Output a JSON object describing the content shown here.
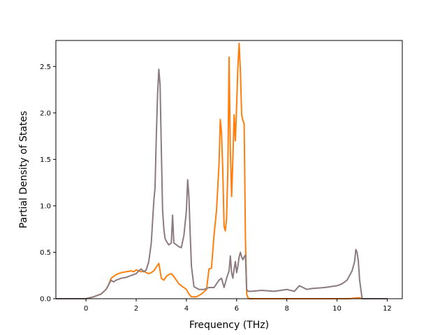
{
  "chart_data": {
    "type": "line",
    "title": "",
    "xlabel": "Frequency (THz)",
    "ylabel": "Partial Density of States",
    "xlim": [
      -1.2,
      12.6
    ],
    "ylim": [
      0,
      2.78
    ],
    "xticks": [
      0,
      2,
      4,
      6,
      8,
      10,
      12
    ],
    "xtick_labels": [
      "0",
      "2",
      "4",
      "6",
      "8",
      "10",
      "12"
    ],
    "yticks": [
      0.0,
      0.5,
      1.0,
      1.5,
      2.0,
      2.5
    ],
    "ytick_labels": [
      "0.0",
      "0.5",
      "1.0",
      "1.5",
      "2.0",
      "2.5"
    ],
    "grid": false,
    "legend": "none",
    "series": [
      {
        "color": "#ff7f0e",
        "x": [
          -1.2,
          0.0,
          0.3,
          0.6,
          0.8,
          0.9,
          1.0,
          1.1,
          1.2,
          1.4,
          1.6,
          1.8,
          1.9,
          2.0,
          2.1,
          2.2,
          2.3,
          2.4,
          2.5,
          2.6,
          2.7,
          2.8,
          2.9,
          2.95,
          3.0,
          3.1,
          3.2,
          3.3,
          3.4,
          3.5,
          3.6,
          3.7,
          3.8,
          3.9,
          4.0,
          4.1,
          4.2,
          4.4,
          4.6,
          4.8,
          4.9,
          5.0,
          5.1,
          5.2,
          5.3,
          5.35,
          5.4,
          5.45,
          5.5,
          5.55,
          5.6,
          5.65,
          5.7,
          5.75,
          5.8,
          5.85,
          5.9,
          5.95,
          6.0,
          6.05,
          6.1,
          6.15,
          6.2,
          6.25,
          6.3,
          6.35,
          6.4,
          6.45,
          6.5,
          6.6,
          7.0,
          8.0,
          9.0,
          10.0,
          10.5,
          10.8,
          10.9,
          11.0,
          12.0
        ],
        "y": [
          0.0,
          0.0,
          0.02,
          0.05,
          0.1,
          0.15,
          0.22,
          0.24,
          0.26,
          0.28,
          0.29,
          0.3,
          0.29,
          0.31,
          0.3,
          0.29,
          0.3,
          0.28,
          0.27,
          0.28,
          0.3,
          0.34,
          0.38,
          0.3,
          0.22,
          0.2,
          0.24,
          0.26,
          0.27,
          0.24,
          0.2,
          0.16,
          0.14,
          0.12,
          0.1,
          0.05,
          0.02,
          0.02,
          0.05,
          0.1,
          0.32,
          0.33,
          0.68,
          0.95,
          1.45,
          1.93,
          1.78,
          1.38,
          0.78,
          0.73,
          0.86,
          1.38,
          2.6,
          1.6,
          1.1,
          1.5,
          1.98,
          1.7,
          2.08,
          2.5,
          2.75,
          2.45,
          1.98,
          1.92,
          1.88,
          0.65,
          0.05,
          0.01,
          0.0,
          0.0,
          0.0,
          0.0,
          0.0,
          0.0,
          0.0,
          0.01,
          0.01,
          0.0,
          0.0
        ]
      },
      {
        "color": "#8c7b7e",
        "x": [
          -1.2,
          0.0,
          0.3,
          0.6,
          0.8,
          0.9,
          1.0,
          1.1,
          1.2,
          1.4,
          1.6,
          1.8,
          1.9,
          2.0,
          2.1,
          2.2,
          2.3,
          2.4,
          2.5,
          2.6,
          2.7,
          2.75,
          2.8,
          2.85,
          2.9,
          2.95,
          3.0,
          3.05,
          3.1,
          3.15,
          3.2,
          3.3,
          3.4,
          3.45,
          3.5,
          3.6,
          3.7,
          3.8,
          3.85,
          3.9,
          4.0,
          4.05,
          4.1,
          4.15,
          4.2,
          4.3,
          4.5,
          4.7,
          4.9,
          5.1,
          5.3,
          5.4,
          5.5,
          5.6,
          5.7,
          5.75,
          5.8,
          5.85,
          5.9,
          5.95,
          6.0,
          6.05,
          6.1,
          6.15,
          6.2,
          6.25,
          6.3,
          6.35,
          6.4,
          6.45,
          6.5,
          6.6,
          7.0,
          7.5,
          8.0,
          8.3,
          8.5,
          8.8,
          9.0,
          9.5,
          10.0,
          10.2,
          10.4,
          10.6,
          10.7,
          10.75,
          10.8,
          10.85,
          10.9,
          11.0,
          12.0
        ],
        "y": [
          0.0,
          0.0,
          0.02,
          0.05,
          0.1,
          0.15,
          0.2,
          0.18,
          0.2,
          0.22,
          0.23,
          0.25,
          0.26,
          0.27,
          0.3,
          0.32,
          0.29,
          0.31,
          0.4,
          0.6,
          1.05,
          1.2,
          1.75,
          2.2,
          2.47,
          2.3,
          1.6,
          0.95,
          0.75,
          0.65,
          0.62,
          0.58,
          0.6,
          0.9,
          0.6,
          0.58,
          0.56,
          0.55,
          0.62,
          0.68,
          0.95,
          1.28,
          1.1,
          0.7,
          0.35,
          0.13,
          0.1,
          0.1,
          0.12,
          0.12,
          0.2,
          0.22,
          0.12,
          0.22,
          0.3,
          0.46,
          0.28,
          0.22,
          0.32,
          0.4,
          0.28,
          0.35,
          0.45,
          0.5,
          0.45,
          0.42,
          0.45,
          0.47,
          0.1,
          0.08,
          0.08,
          0.08,
          0.09,
          0.08,
          0.1,
          0.08,
          0.14,
          0.1,
          0.11,
          0.12,
          0.14,
          0.16,
          0.2,
          0.3,
          0.4,
          0.53,
          0.5,
          0.4,
          0.2,
          0.0,
          0.0
        ]
      }
    ]
  }
}
